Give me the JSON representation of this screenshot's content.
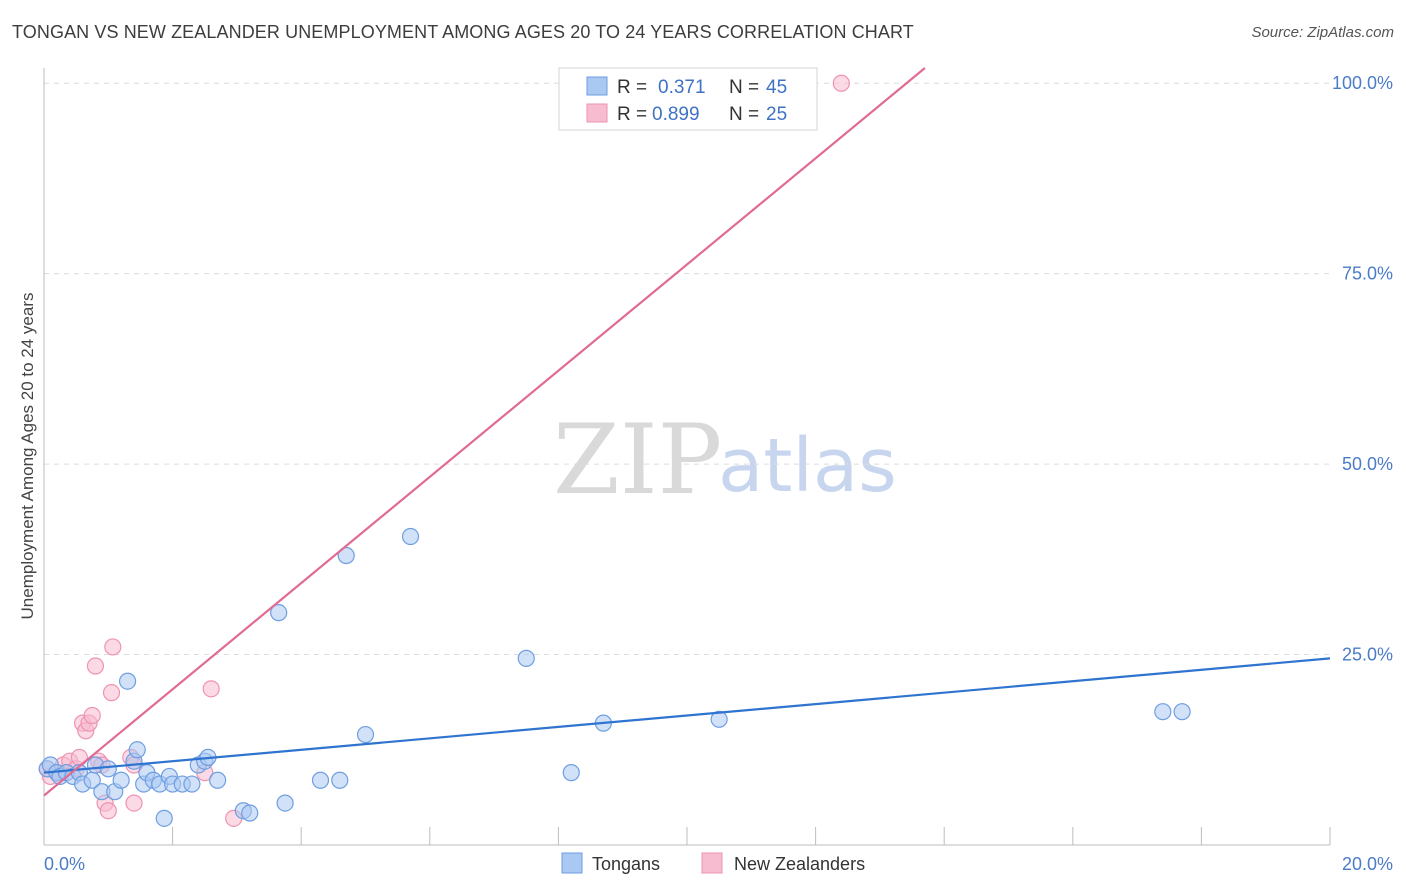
{
  "title": "TONGAN VS NEW ZEALANDER UNEMPLOYMENT AMONG AGES 20 TO 24 YEARS CORRELATION CHART",
  "source": "Source: ZipAtlas.com",
  "colors": {
    "blue_fill": "#a9c8f2",
    "blue_stroke": "#6f9ee0",
    "blue_line": "#2f74d0",
    "pink_fill": "#f7bccf",
    "pink_stroke": "#ee93b2",
    "pink_line": "#e06b95",
    "grid": "#dcdcdc",
    "tick_text": "#4a7cc7"
  },
  "chart_data": {
    "type": "scatter",
    "title": "TONGAN VS NEW ZEALANDER UNEMPLOYMENT AMONG AGES 20 TO 24 YEARS CORRELATION CHART",
    "xlabel": "",
    "ylabel": "Unemployment Among Ages 20 to 24 years",
    "xlim": [
      0,
      20
    ],
    "ylim": [
      0,
      102
    ],
    "x_tick_labels": [
      "0.0%",
      "20.0%"
    ],
    "y_ticks": [
      25,
      50,
      75,
      100
    ],
    "y_tick_labels": [
      "25.0%",
      "50.0%",
      "75.0%",
      "100.0%"
    ],
    "legend": [
      {
        "r_label": "R =",
        "r_value": "0.371",
        "n_label": "N =",
        "n_value": "45"
      },
      {
        "r_label": "R =",
        "r_value": "0.899",
        "n_label": "N =",
        "n_value": "25"
      }
    ],
    "watermark": {
      "zip": "ZIP",
      "atlas": "atlas"
    },
    "series": [
      {
        "name": "Tongans",
        "trend": {
          "x0": 0,
          "y0": 9.5,
          "x1": 20,
          "y1": 24.5
        },
        "points": [
          [
            0.05,
            10.0
          ],
          [
            0.1,
            10.5
          ],
          [
            0.2,
            9.5
          ],
          [
            0.25,
            9.0
          ],
          [
            0.35,
            9.5
          ],
          [
            0.45,
            9.0
          ],
          [
            0.55,
            9.5
          ],
          [
            0.6,
            8.0
          ],
          [
            0.75,
            8.5
          ],
          [
            0.8,
            10.5
          ],
          [
            0.9,
            7.0
          ],
          [
            1.0,
            10.0
          ],
          [
            1.1,
            7.0
          ],
          [
            1.2,
            8.5
          ],
          [
            1.3,
            21.5
          ],
          [
            1.4,
            11.0
          ],
          [
            1.45,
            12.5
          ],
          [
            1.55,
            8.0
          ],
          [
            1.6,
            9.5
          ],
          [
            1.7,
            8.5
          ],
          [
            1.8,
            8.0
          ],
          [
            1.87,
            3.5
          ],
          [
            1.95,
            9.0
          ],
          [
            2.0,
            8.0
          ],
          [
            2.15,
            8.0
          ],
          [
            2.3,
            8.0
          ],
          [
            2.4,
            10.5
          ],
          [
            2.5,
            11.0
          ],
          [
            2.55,
            11.5
          ],
          [
            2.7,
            8.5
          ],
          [
            3.1,
            4.5
          ],
          [
            3.2,
            4.2
          ],
          [
            3.65,
            30.5
          ],
          [
            3.75,
            5.5
          ],
          [
            4.3,
            8.5
          ],
          [
            4.6,
            8.5
          ],
          [
            4.7,
            38.0
          ],
          [
            5.0,
            14.5
          ],
          [
            5.7,
            40.5
          ],
          [
            7.5,
            24.5
          ],
          [
            8.2,
            9.5
          ],
          [
            8.7,
            16.0
          ],
          [
            10.5,
            16.5
          ],
          [
            17.4,
            17.5
          ],
          [
            17.7,
            17.5
          ]
        ]
      },
      {
        "name": "New Zealanders",
        "trend": {
          "x0": 0,
          "y0": 6.5,
          "x1": 13.7,
          "y1": 102
        },
        "points": [
          [
            0.05,
            10.0
          ],
          [
            0.1,
            9.0
          ],
          [
            0.2,
            9.5
          ],
          [
            0.3,
            10.5
          ],
          [
            0.4,
            11.0
          ],
          [
            0.5,
            10.0
          ],
          [
            0.55,
            11.5
          ],
          [
            0.6,
            16.0
          ],
          [
            0.65,
            15.0
          ],
          [
            0.7,
            16.0
          ],
          [
            0.75,
            17.0
          ],
          [
            0.8,
            23.5
          ],
          [
            0.85,
            11.0
          ],
          [
            0.9,
            10.5
          ],
          [
            0.95,
            5.5
          ],
          [
            1.0,
            4.5
          ],
          [
            1.05,
            20.0
          ],
          [
            1.07,
            26.0
          ],
          [
            1.35,
            11.5
          ],
          [
            1.4,
            10.5
          ],
          [
            1.4,
            5.5
          ],
          [
            2.5,
            9.5
          ],
          [
            2.6,
            20.5
          ],
          [
            2.95,
            3.5
          ],
          [
            12.4,
            100.0
          ]
        ]
      }
    ]
  }
}
